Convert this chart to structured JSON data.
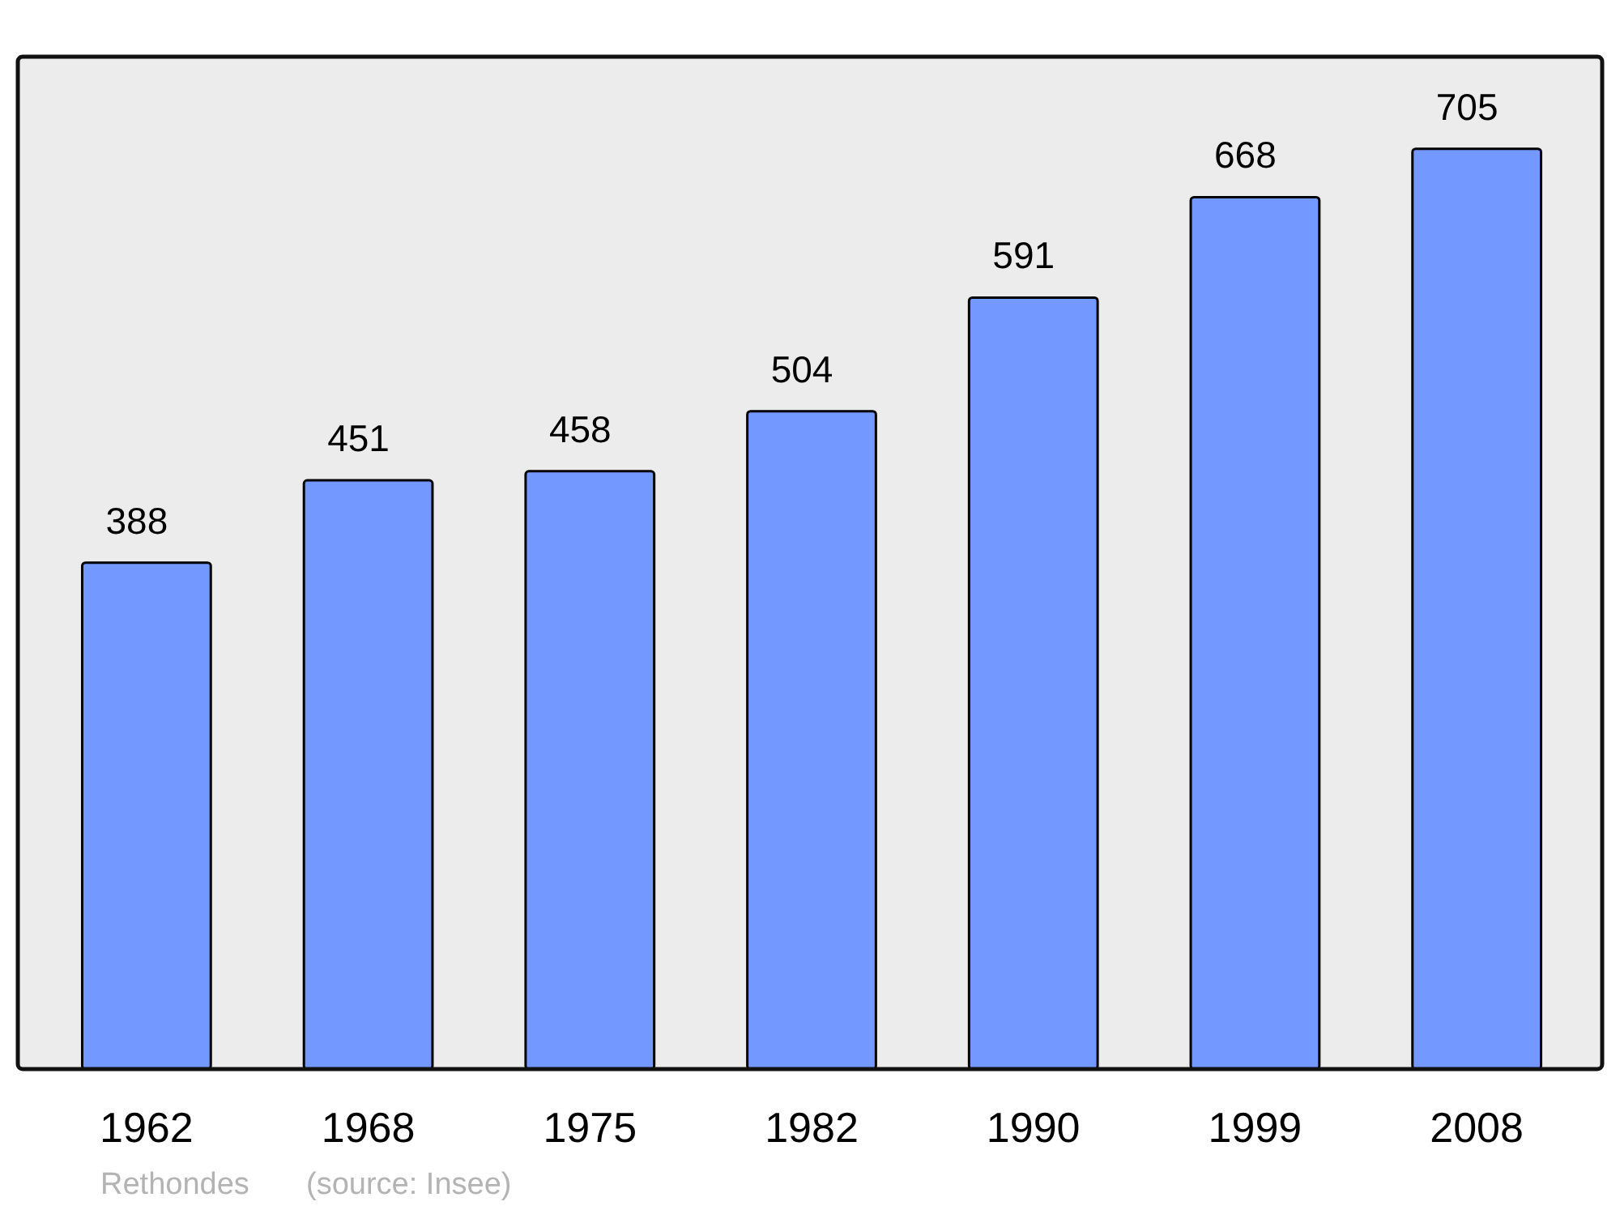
{
  "chart_data": {
    "type": "bar",
    "categories": [
      "1962",
      "1968",
      "1975",
      "1982",
      "1990",
      "1999",
      "2008"
    ],
    "values": [
      388,
      451,
      458,
      504,
      591,
      668,
      705
    ],
    "color": "#7398ff",
    "data_labels": true,
    "annotations": [
      "Rethondes",
      "(source: Insee)"
    ]
  }
}
